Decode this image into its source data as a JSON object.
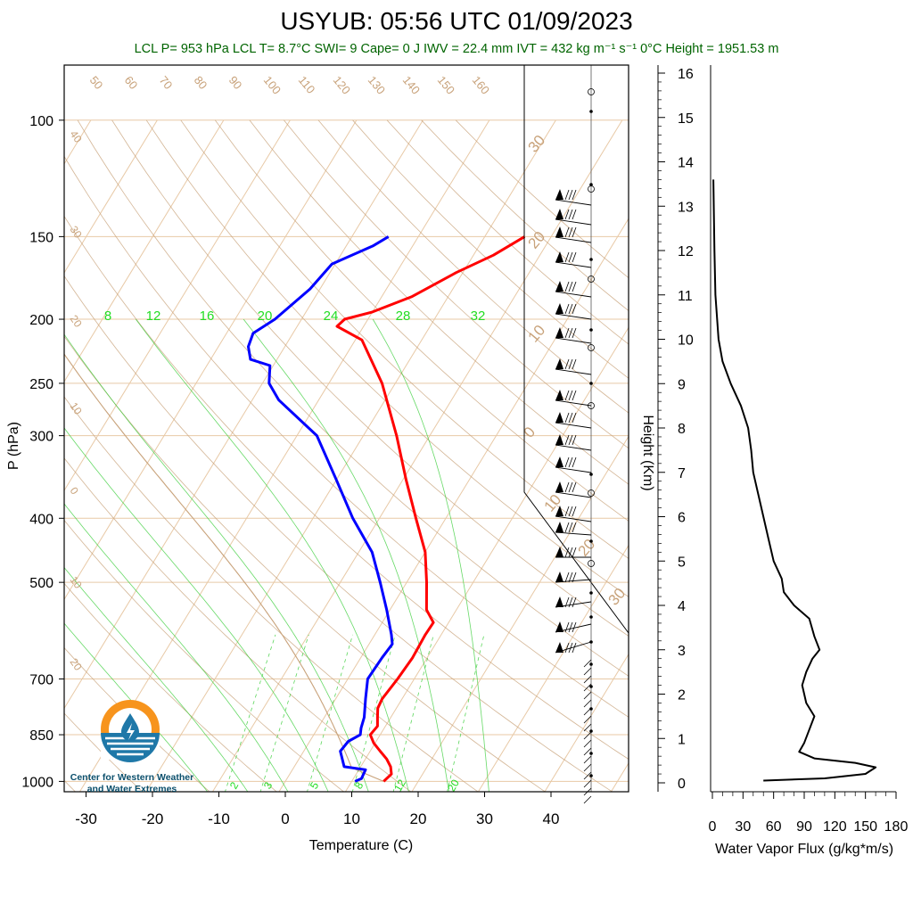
{
  "header": {
    "title": "USYUB: 05:56 UTC 01/09/2023",
    "subtitle": "LCL P= 953 hPa  LCL T= 8.7°C  SWI= 9  Cape= 0 J  IWV = 22.4 mm  IVT = 432 kg m⁻¹ s⁻¹  0°C Height = 1951.53 m"
  },
  "logo": {
    "line1": "Center for Western Weather",
    "line2": "and Water Extremes",
    "colors": {
      "orange": "#f7941d",
      "blue": "#1f78a8",
      "dark": "#0b4f6c"
    }
  },
  "colors": {
    "temperature": "#ff0000",
    "dewpoint": "#0000ff",
    "dry_adiabat": "#c8a27a",
    "moist_adiabat": "#33cc33",
    "mixing_ratio": "#33cc33",
    "isobar": "#e8c9a6",
    "parcel": "#c8a27a"
  },
  "chart_data": [
    {
      "type": "line",
      "name": "skew-t",
      "xlabel": "Temperature (C)",
      "ylabel": "P (hPa)",
      "xlim": [
        -35,
        52
      ],
      "ylim": [
        1050,
        100
      ],
      "x_ticks": [
        "-30",
        "-20",
        "-10",
        "0",
        "10",
        "20",
        "30",
        "40"
      ],
      "y_ticks": [
        "100",
        "150",
        "200",
        "250",
        "300",
        "400",
        "500",
        "700",
        "850",
        "1000"
      ],
      "skew_temp_labels": [
        "50",
        "60",
        "70",
        "80",
        "90",
        "100",
        "110",
        "120",
        "130",
        "140",
        "150",
        "160"
      ],
      "dry_adiabat_labels": [
        "40",
        "30",
        "20",
        "10",
        "0",
        "10",
        "20"
      ],
      "moist_adiabat_labels": [
        "8",
        "12",
        "16",
        "20",
        "24",
        "28",
        "32"
      ],
      "mixing_ratio_labels": [
        "2",
        "3",
        "5",
        "8",
        "12",
        "20"
      ],
      "hodo_speed_labels": [
        "30",
        "20",
        "10",
        "0",
        "10",
        "20",
        "30"
      ],
      "series": [
        {
          "name": "Temperature",
          "points": [
            [
              14.8,
              1000
            ],
            [
              15.3,
              975
            ],
            [
              14.5,
              950
            ],
            [
              13.2,
              925
            ],
            [
              11.5,
              900
            ],
            [
              9.8,
              875
            ],
            [
              8.5,
              850
            ],
            [
              8.8,
              825
            ],
            [
              8.0,
              800
            ],
            [
              7.2,
              775
            ],
            [
              7.0,
              750
            ],
            [
              7.5,
              700
            ],
            [
              7.8,
              650
            ],
            [
              7.6,
              600
            ],
            [
              7.7,
              575
            ],
            [
              5.5,
              550
            ],
            [
              3.0,
              500
            ],
            [
              0.0,
              450
            ],
            [
              -4.5,
              400
            ],
            [
              -9.5,
              350
            ],
            [
              -15.0,
              300
            ],
            [
              -22.0,
              250
            ],
            [
              -29.0,
              215
            ],
            [
              -34.0,
              205
            ],
            [
              -33.5,
              200
            ],
            [
              -30.0,
              195
            ],
            [
              -25.5,
              185
            ],
            [
              -21.0,
              170
            ],
            [
              -17.0,
              160
            ],
            [
              -14.0,
              150
            ]
          ]
        },
        {
          "name": "Dewpoint",
          "points": [
            [
              10.5,
              1000
            ],
            [
              11.2,
              990
            ],
            [
              11.0,
              960
            ],
            [
              7.5,
              950
            ],
            [
              5.5,
              900
            ],
            [
              5.8,
              870
            ],
            [
              7.0,
              850
            ],
            [
              6.5,
              830
            ],
            [
              6.0,
              800
            ],
            [
              4.5,
              750
            ],
            [
              3.0,
              700
            ],
            [
              3.2,
              650
            ],
            [
              3.5,
              620
            ],
            [
              2.5,
              600
            ],
            [
              -0.5,
              550
            ],
            [
              -4.0,
              500
            ],
            [
              -8.0,
              450
            ],
            [
              -14.0,
              400
            ],
            [
              -20.0,
              350
            ],
            [
              -27.0,
              300
            ],
            [
              -36.0,
              265
            ],
            [
              -39.0,
              250
            ],
            [
              -40.5,
              235
            ],
            [
              -44.0,
              230
            ],
            [
              -45.5,
              220
            ],
            [
              -46.0,
              210
            ],
            [
              -44.0,
              200
            ],
            [
              -41.5,
              180
            ],
            [
              -40.5,
              165
            ],
            [
              -36.0,
              155
            ],
            [
              -34.5,
              150
            ]
          ]
        }
      ]
    },
    {
      "type": "line",
      "name": "water-vapor-flux",
      "xlabel": "Water Vapor Flux (g/kg*m/s)",
      "ylabel": "Height (Km)",
      "xlim": [
        0,
        180
      ],
      "ylim": [
        -0.2,
        16.4
      ],
      "x_ticks": [
        "0",
        "30",
        "60",
        "90",
        "120",
        "150",
        "180"
      ],
      "y_ticks": [
        "0",
        "1",
        "2",
        "3",
        "4",
        "5",
        "6",
        "7",
        "8",
        "9",
        "10",
        "11",
        "12",
        "13",
        "14",
        "15",
        "16"
      ],
      "x": [
        50,
        110,
        150,
        160,
        140,
        100,
        85,
        90,
        95,
        100,
        92,
        88,
        92,
        98,
        105,
        100,
        95,
        80,
        70,
        68,
        60,
        55,
        50,
        45,
        40,
        38,
        35,
        28,
        18,
        10,
        6,
        3,
        2,
        1
      ],
      "y": [
        0.05,
        0.1,
        0.2,
        0.35,
        0.45,
        0.55,
        0.7,
        0.9,
        1.2,
        1.5,
        1.8,
        2.2,
        2.5,
        2.8,
        3.0,
        3.3,
        3.7,
        4.0,
        4.3,
        4.6,
        5.0,
        5.5,
        6.0,
        6.5,
        7.0,
        7.5,
        8.0,
        8.5,
        9.0,
        9.5,
        10.0,
        11.0,
        12.0,
        13.6
      ]
    }
  ]
}
